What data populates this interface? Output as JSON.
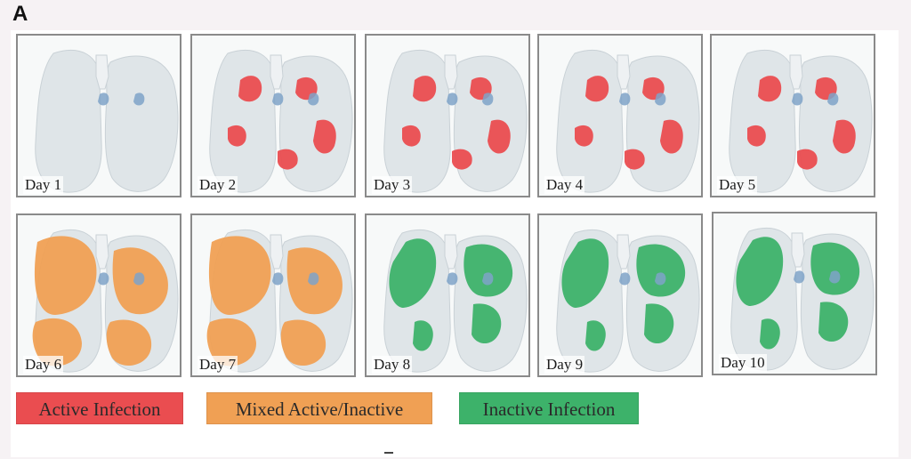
{
  "figure": {
    "panel_letter": "A"
  },
  "panels": [
    {
      "label": "Day 1",
      "state": "none"
    },
    {
      "label": "Day 2",
      "state": "active"
    },
    {
      "label": "Day 3",
      "state": "active"
    },
    {
      "label": "Day 4",
      "state": "active"
    },
    {
      "label": "Day 5",
      "state": "active"
    },
    {
      "label": "Day 6",
      "state": "mixed"
    },
    {
      "label": "Day 7",
      "state": "mixed"
    },
    {
      "label": "Day 8",
      "state": "inactive"
    },
    {
      "label": "Day 9",
      "state": "inactive"
    },
    {
      "label": "Day 10",
      "state": "inactive"
    }
  ],
  "legend": [
    {
      "label": "Active Infection",
      "color": "#ea4d50"
    },
    {
      "label": "Mixed Active/Inactive",
      "color": "#f0a054"
    },
    {
      "label": "Inactive Infection",
      "color": "#3db26a"
    }
  ],
  "colors": {
    "tissue": "#dfe5e8",
    "tissue_edge": "#c9d1d6",
    "airway": "#7fa3c8",
    "active": "#ea4d50",
    "mixed": "#f0a054",
    "inactive": "#3db26a"
  }
}
